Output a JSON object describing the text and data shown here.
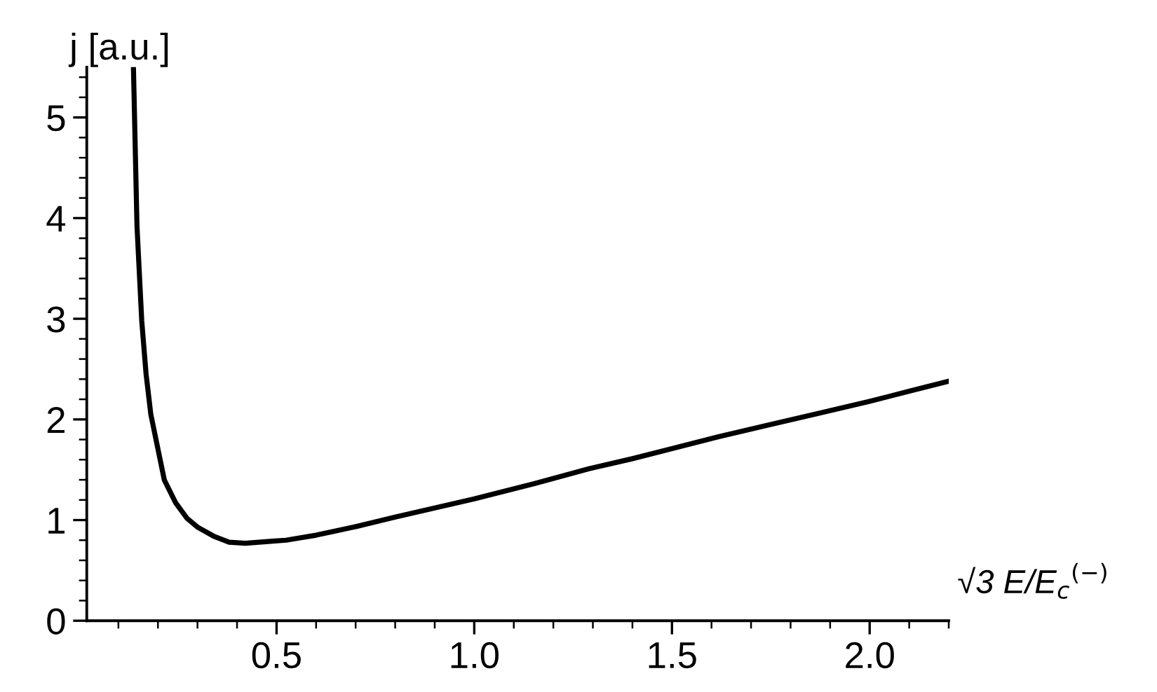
{
  "chart_data": {
    "type": "line",
    "ylabel": "j [a.u.]",
    "xlabel": "√3 E/E$_{c}$$^{(−)}$",
    "x": [
      0.138,
      0.147,
      0.159,
      0.17,
      0.182,
      0.216,
      0.245,
      0.273,
      0.3,
      0.341,
      0.38,
      0.421,
      0.49,
      0.524,
      0.6,
      0.695,
      0.8,
      0.9,
      1.0,
      1.15,
      1.29,
      1.4,
      1.5,
      1.62,
      1.75,
      1.87,
      2.0,
      2.1,
      2.2
    ],
    "series": [
      {
        "color": "#000000",
        "values": [
          5.5,
          3.92,
          2.98,
          2.45,
          2.05,
          1.4,
          1.17,
          1.02,
          0.93,
          0.84,
          0.78,
          0.77,
          0.79,
          0.8,
          0.85,
          0.93,
          1.03,
          1.12,
          1.21,
          1.36,
          1.51,
          1.61,
          1.71,
          1.83,
          1.95,
          2.06,
          2.18,
          2.28,
          2.38
        ]
      }
    ],
    "xlim": [
      0.02,
      2.2
    ],
    "ylim": [
      0,
      5.5
    ],
    "xticks": [
      {
        "value": 0.1,
        "label": null
      },
      {
        "value": 0.2,
        "label": null
      },
      {
        "value": 0.3,
        "label": null
      },
      {
        "value": 0.4,
        "label": null
      },
      {
        "value": 0.5,
        "label": "0.5"
      },
      {
        "value": 0.6,
        "label": null
      },
      {
        "value": 0.7,
        "label": null
      },
      {
        "value": 0.8,
        "label": null
      },
      {
        "value": 0.9,
        "label": null
      },
      {
        "value": 1.0,
        "label": "1.0"
      },
      {
        "value": 1.1,
        "label": null
      },
      {
        "value": 1.2,
        "label": null
      },
      {
        "value": 1.3,
        "label": null
      },
      {
        "value": 1.4,
        "label": null
      },
      {
        "value": 1.5,
        "label": "1.5"
      },
      {
        "value": 1.6,
        "label": null
      },
      {
        "value": 1.7,
        "label": null
      },
      {
        "value": 1.8,
        "label": null
      },
      {
        "value": 1.9,
        "label": null
      },
      {
        "value": 2.0,
        "label": "2.0"
      },
      {
        "value": 2.1,
        "label": null
      },
      {
        "value": 2.2,
        "label": null
      }
    ],
    "yticks": [
      0,
      {
        "value": 0.2,
        "label": null
      },
      {
        "value": 0.4,
        "label": null
      },
      {
        "value": 0.6,
        "label": null
      },
      {
        "value": 0.8,
        "label": null
      },
      1,
      {
        "value": 1.2,
        "label": null
      },
      {
        "value": 1.4,
        "label": null
      },
      {
        "value": 1.6,
        "label": null
      },
      {
        "value": 1.8,
        "label": null
      },
      2,
      {
        "value": 2.2,
        "label": null
      },
      {
        "value": 2.4,
        "label": null
      },
      {
        "value": 2.6,
        "label": null
      },
      {
        "value": 2.8,
        "label": null
      },
      3,
      {
        "value": 3.2,
        "label": null
      },
      {
        "value": 3.4,
        "label": null
      },
      {
        "value": 3.6,
        "label": null
      },
      {
        "value": 3.8,
        "label": null
      },
      4,
      {
        "value": 4.2,
        "label": null
      },
      {
        "value": 4.4,
        "label": null
      },
      {
        "value": 4.6,
        "label": null
      },
      {
        "value": 4.8,
        "label": null
      },
      5,
      {
        "value": 5.2,
        "label": null
      },
      {
        "value": 5.4,
        "label": null
      }
    ],
    "grid": false,
    "legend": false,
    "marker": "none",
    "line_style": "solid"
  }
}
